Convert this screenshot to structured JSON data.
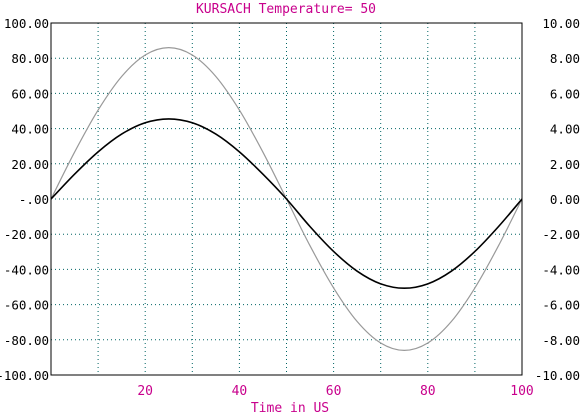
{
  "chart_data": {
    "type": "line",
    "title": "KURSACH Temperature= 50",
    "xlabel": "Time in US",
    "ylabel_left": "",
    "ylabel_right": "",
    "xlim": [
      0,
      100
    ],
    "ylim_left": [
      -100,
      100
    ],
    "ylim_right": [
      -10,
      10
    ],
    "x_ticks": [
      "20",
      "40",
      "60",
      "80",
      "100"
    ],
    "y_left_ticks": [
      "100.00",
      "80.00",
      "60.00",
      "40.00",
      "20.00",
      "-.00",
      "-20.00",
      "-40.00",
      "-60.00",
      "-80.00",
      "-100.00"
    ],
    "y_right_ticks": [
      "10.00",
      "8.00",
      "6.00",
      "4.00",
      "2.00",
      "0.00",
      "-2.00",
      "-4.00",
      "-6.00",
      "-8.00",
      "-10.00"
    ],
    "grid": true,
    "colors": {
      "title": "#c8008c",
      "xlabel": "#c8008c",
      "x_ticks": "#c8008c",
      "y_ticks": "#000000",
      "grid": "#006464",
      "axes": "#000000"
    },
    "series": [
      {
        "axis": "left",
        "color": "#999999",
        "x": [
          0,
          5,
          10,
          15,
          20,
          25,
          30,
          35,
          40,
          45,
          50,
          55,
          60,
          65,
          70,
          75,
          80,
          85,
          90,
          95,
          100
        ],
        "y": [
          0,
          26.6,
          50.5,
          69.6,
          81.8,
          86.0,
          81.8,
          69.6,
          50.5,
          26.6,
          0,
          -26.6,
          -50.5,
          -69.6,
          -81.8,
          -86.0,
          -81.8,
          -69.6,
          -50.5,
          -26.6,
          0
        ]
      },
      {
        "axis": "right",
        "color": "#000000",
        "x": [
          0,
          5,
          10,
          15,
          20,
          25,
          30,
          35,
          40,
          45,
          50,
          55,
          60,
          65,
          70,
          75,
          80,
          85,
          90,
          95,
          100
        ],
        "y": [
          0,
          1.41,
          2.68,
          3.69,
          4.33,
          4.55,
          4.33,
          3.69,
          2.68,
          1.41,
          0,
          -1.57,
          -2.98,
          -4.1,
          -4.82,
          -5.07,
          -4.82,
          -4.1,
          -2.98,
          -1.57,
          0
        ]
      }
    ]
  }
}
